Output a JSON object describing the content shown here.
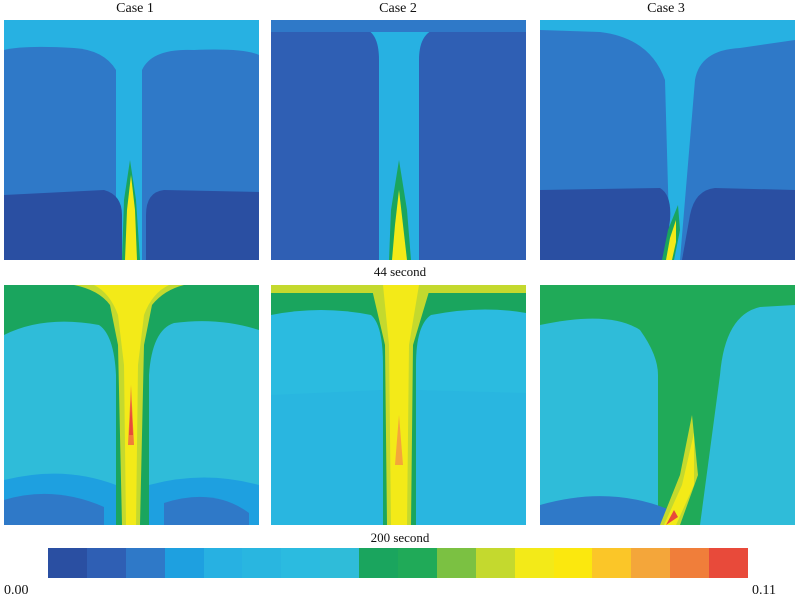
{
  "columns": [
    "Case 1",
    "Case 2",
    "Case 3"
  ],
  "rows": [
    {
      "time_label": "44 second"
    },
    {
      "time_label": "200 second"
    }
  ],
  "colorbar": {
    "min_label": "0.00",
    "max_label": "0.11",
    "colors": [
      "#2a4fa2",
      "#2f5fb4",
      "#2f79c8",
      "#1ea0e0",
      "#27b1e2",
      "#29b6e0",
      "#2bbbe0",
      "#2fbcd9",
      "#1aa55e",
      "#20aa58",
      "#7bc142",
      "#c4d92e",
      "#f3ea18",
      "#fbe80e",
      "#fbc628",
      "#f4a63a",
      "#f07e3a",
      "#e84a3a"
    ]
  }
}
